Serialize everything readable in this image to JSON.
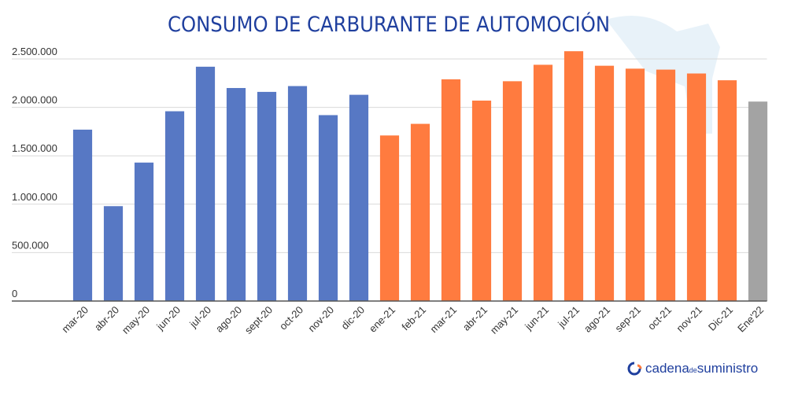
{
  "chart_data": {
    "type": "bar",
    "title": "CONSUMO DE CARBURANTE DE AUTOMOCIÓN",
    "categories": [
      "mar-20",
      "abr-20",
      "may-20",
      "jun-20",
      "jul-20",
      "ago-20",
      "sept-20",
      "oct-20",
      "nov-20",
      "dic-20",
      "ene-21",
      "feb-21",
      "mar-21",
      "abr-21",
      "may-21",
      "jun-21",
      "jul-21",
      "ago-21",
      "sep-21",
      "oct-21",
      "nov-21",
      "Dic-21",
      "Ene'22"
    ],
    "values": [
      1770000,
      980000,
      1430000,
      1960000,
      2420000,
      2200000,
      2160000,
      2220000,
      1920000,
      2130000,
      1710000,
      1830000,
      2290000,
      2070000,
      2270000,
      2440000,
      2580000,
      2430000,
      2400000,
      2390000,
      2350000,
      2280000,
      2060000
    ],
    "colors": [
      "#5778c4",
      "#5778c4",
      "#5778c4",
      "#5778c4",
      "#5778c4",
      "#5778c4",
      "#5778c4",
      "#5778c4",
      "#5778c4",
      "#5778c4",
      "#ff7b3f",
      "#ff7b3f",
      "#ff7b3f",
      "#ff7b3f",
      "#ff7b3f",
      "#ff7b3f",
      "#ff7b3f",
      "#ff7b3f",
      "#ff7b3f",
      "#ff7b3f",
      "#ff7b3f",
      "#ff7b3f",
      "#a3a3a3"
    ],
    "ylim": [
      0,
      2600000
    ],
    "yticks": [
      0,
      {
        "value": 500000,
        "label": "500.000"
      },
      {
        "value": 1000000,
        "label": "1.000.000"
      },
      {
        "value": 1500000,
        "label": "1.500.000"
      },
      {
        "value": 2000000,
        "label": "2.000.000"
      },
      {
        "value": 2500000,
        "label": "2.500.000"
      }
    ],
    "grid": true
  },
  "brand": {
    "main": "cadena",
    "small": "de",
    "rest": "suministro"
  }
}
